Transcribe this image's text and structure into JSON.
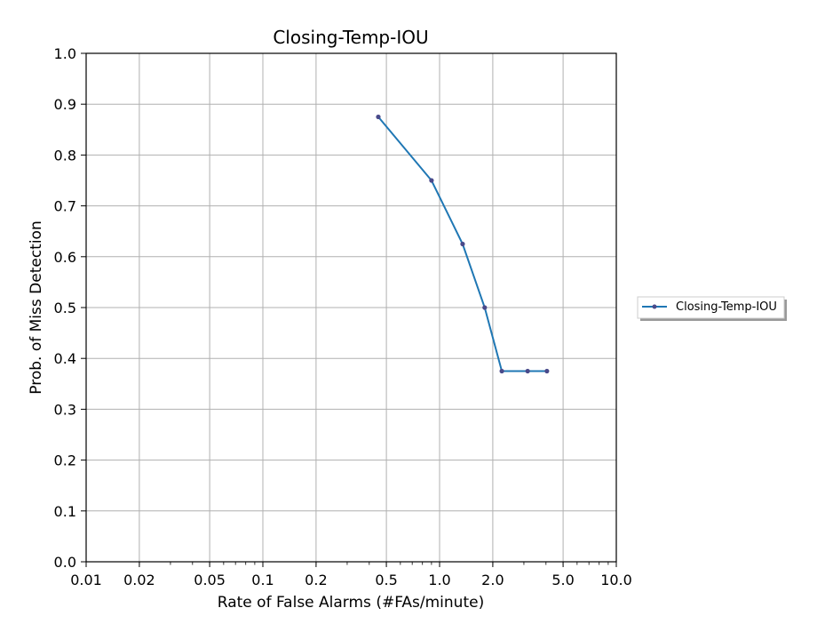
{
  "chart_data": {
    "type": "line",
    "title": "Closing-Temp-IOU",
    "xlabel": "Rate of False Alarms (#FAs/minute)",
    "ylabel": "Prob. of Miss Detection",
    "xscale": "log",
    "xlim": [
      0.01,
      10.0
    ],
    "ylim": [
      0.0,
      1.0
    ],
    "grid": true,
    "x_ticks": [
      0.01,
      0.02,
      0.05,
      0.1,
      0.2,
      0.5,
      1.0,
      2.0,
      5.0,
      10.0
    ],
    "x_tick_labels": [
      "0.01",
      "0.02",
      "0.05",
      "0.1",
      "0.2",
      "0.5",
      "1.0",
      "2.0",
      "5.0",
      "10.0"
    ],
    "y_ticks": [
      0.0,
      0.1,
      0.2,
      0.3,
      0.4,
      0.5,
      0.6,
      0.7,
      0.8,
      0.9,
      1.0
    ],
    "y_tick_labels": [
      "0.0",
      "0.1",
      "0.2",
      "0.3",
      "0.4",
      "0.5",
      "0.6",
      "0.7",
      "0.8",
      "0.9",
      "1.0"
    ],
    "legend_position": "outside-right",
    "series": [
      {
        "name": "Closing-Temp-IOU",
        "color": "#1f77b4",
        "marker_color": "#4a4a8a",
        "x": [
          0.45,
          0.9,
          1.35,
          1.8,
          2.25,
          3.15,
          4.05
        ],
        "y": [
          0.875,
          0.75,
          0.625,
          0.5,
          0.375,
          0.375,
          0.375
        ]
      }
    ]
  }
}
